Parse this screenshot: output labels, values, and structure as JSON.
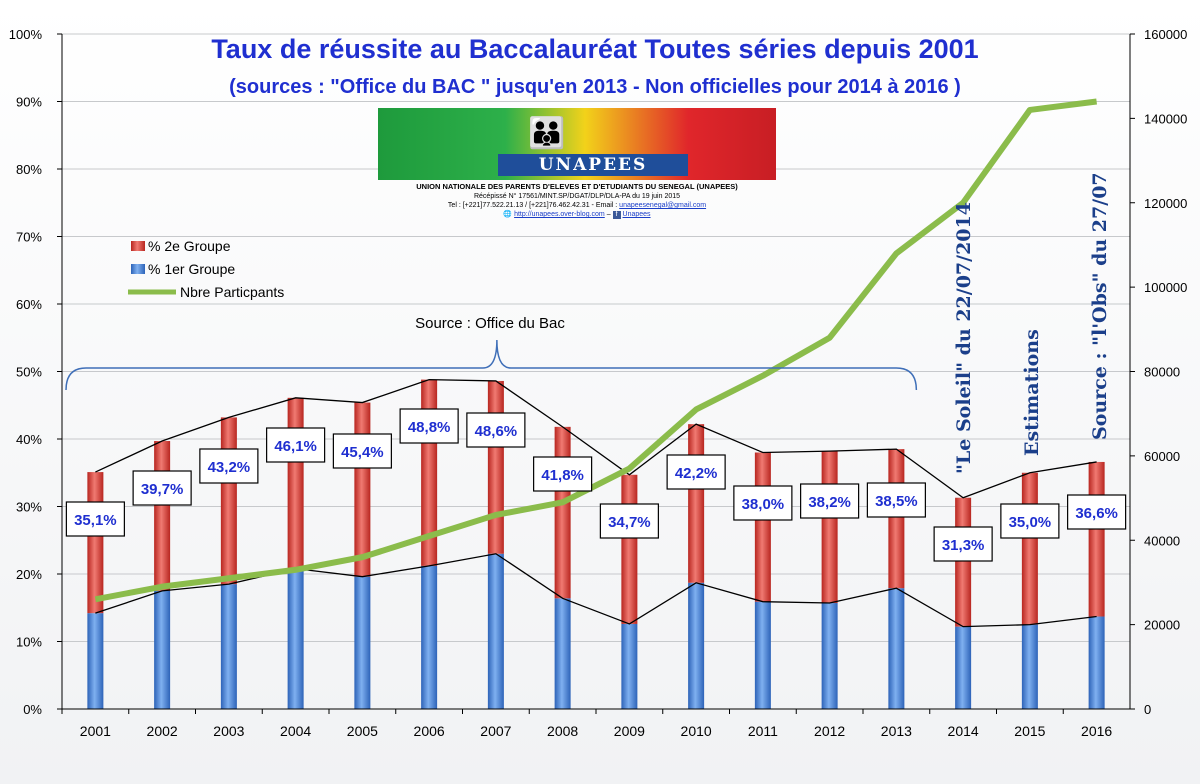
{
  "chart_data": {
    "type": "bar",
    "title": "Taux de réussite au Baccalauréat Toutes séries depuis 2001",
    "subtitle": "(sources : \"Office du BAC \" jusqu'en 2013 - Non officielles pour 2014 à 2016 )",
    "categories": [
      "2001",
      "2002",
      "2003",
      "2004",
      "2005",
      "2006",
      "2007",
      "2008",
      "2009",
      "2010",
      "2011",
      "2012",
      "2013",
      "2014",
      "2015",
      "2016"
    ],
    "series": [
      {
        "name": "% 1er Groupe",
        "axis": "left",
        "color": "#4a84d8",
        "values": [
          14.2,
          17.5,
          18.5,
          20.8,
          19.6,
          21.2,
          23.0,
          16.4,
          12.6,
          18.7,
          15.9,
          15.7,
          17.9,
          12.2,
          12.5,
          13.7
        ]
      },
      {
        "name": "% 2e Groupe",
        "axis": "left",
        "color": "#d23a35",
        "values": [
          20.9,
          22.2,
          24.7,
          25.3,
          25.8,
          27.6,
          25.6,
          25.4,
          22.1,
          23.5,
          22.1,
          22.5,
          20.6,
          19.1,
          22.5,
          22.9
        ]
      },
      {
        "name": "Nbre Particpants",
        "axis": "right",
        "color": "#8bbc4b",
        "values": [
          26000,
          29000,
          31000,
          33000,
          36000,
          41000,
          46000,
          49000,
          57000,
          71000,
          79000,
          88000,
          108000,
          120000,
          142000,
          144000
        ]
      }
    ],
    "totals": [
      35.1,
      39.7,
      43.2,
      46.1,
      45.4,
      48.8,
      48.6,
      41.8,
      34.7,
      42.2,
      38.0,
      38.2,
      38.5,
      31.3,
      35.0,
      36.6
    ],
    "total_labels": [
      "35,1%",
      "39,7%",
      "43,2%",
      "46,1%",
      "45,4%",
      "48,8%",
      "48,6%",
      "41,8%",
      "34,7%",
      "42,2%",
      "38,0%",
      "38,2%",
      "38,5%",
      "31,3%",
      "35,0%",
      "36,6%"
    ],
    "y_left": {
      "min": 0,
      "max": 100,
      "ticks": [
        "0%",
        "10%",
        "20%",
        "30%",
        "40%",
        "50%",
        "60%",
        "70%",
        "80%",
        "90%",
        "100%"
      ]
    },
    "y_right": {
      "min": 0,
      "max": 160000,
      "ticks": [
        "0",
        "20000",
        "40000",
        "60000",
        "80000",
        "100000",
        "120000",
        "140000",
        "160000"
      ]
    },
    "grid": true,
    "legend_position": "top-left",
    "annotations": {
      "bracket_label": "Source : Office du Bac",
      "soleil": "\"Le Soleil\" du 22/07/2014",
      "estimations": "Estimations",
      "obs": "Source : \"l'Obs\" du 27/07"
    }
  },
  "logo": {
    "name": "UNAPEES",
    "line1": "UNION NATIONALE DES PARENTS D'ELEVES ET D'ETUDIANTS DU SENEGAL (UNAPEES)",
    "line2": "Récépissé N° 17561/MINT.SP/DGAT/DLP/DLA-PA du 19 juin 2015",
    "line3": "Tel : [+221]77.522.21.13 / [+221]76.462.42.31 -  Email :",
    "email": "unapeesenegal@gmail.com",
    "blog": "http://unapees.over-blog.com",
    "sep": "–",
    "fb": "Unapees"
  }
}
